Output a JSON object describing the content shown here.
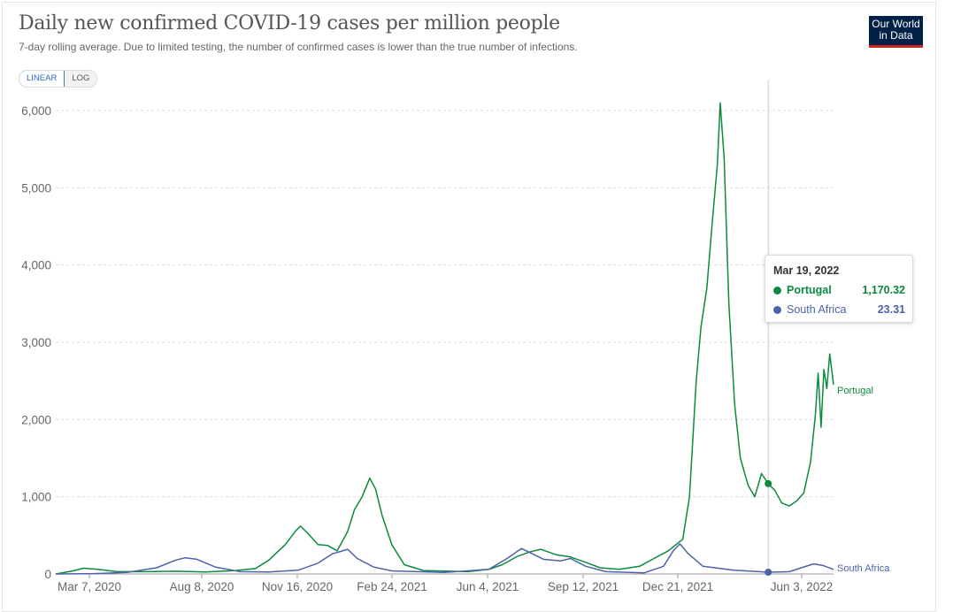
{
  "header": {
    "title": "Daily new confirmed COVID-19 cases per million people",
    "subtitle": "7-day rolling average. Due to limited testing, the number of confirmed cases is lower than the true number of infections.",
    "logo_line1": "Our World",
    "logo_line2": "in Data"
  },
  "scale_toggle": {
    "linear": "LINEAR",
    "log": "LOG",
    "selected": "LINEAR"
  },
  "tooltip": {
    "date": "Mar 19, 2022",
    "rows": [
      {
        "name": "Portugal",
        "value": "1,170.32",
        "color": "#0b8a3e"
      },
      {
        "name": "South Africa",
        "value": "23.31",
        "color": "#4c63a8"
      }
    ]
  },
  "chart_data": {
    "type": "line",
    "title": "Daily new confirmed COVID-19 cases per million people",
    "xlabel": "",
    "ylabel": "",
    "x_ticks": [
      "Mar 7, 2020",
      "Aug 8, 2020",
      "Nov 16, 2020",
      "Feb 24, 2021",
      "Jun 4, 2021",
      "Sep 12, 2021",
      "Dec 21, 2021",
      "Jun 3, 2022"
    ],
    "y_ticks": [
      "0",
      "1,000",
      "2,000",
      "3,000",
      "4,000",
      "5,000",
      "6,000"
    ],
    "ylim": [
      0,
      6200
    ],
    "grid": "horizontal dashed",
    "legend": "labels at line ends (right)",
    "hover_date": "2022-03-19",
    "series": [
      {
        "name": "Portugal",
        "color": "#0b8a3e",
        "points": [
          [
            "2020-03-07",
            0
          ],
          [
            "2020-03-25",
            40
          ],
          [
            "2020-04-05",
            75
          ],
          [
            "2020-04-20",
            60
          ],
          [
            "2020-05-10",
            30
          ],
          [
            "2020-06-10",
            30
          ],
          [
            "2020-07-10",
            35
          ],
          [
            "2020-08-10",
            25
          ],
          [
            "2020-09-10",
            45
          ],
          [
            "2020-10-01",
            70
          ],
          [
            "2020-10-15",
            180
          ],
          [
            "2020-11-01",
            380
          ],
          [
            "2020-11-12",
            560
          ],
          [
            "2020-11-17",
            620
          ],
          [
            "2020-11-25",
            520
          ],
          [
            "2020-12-05",
            380
          ],
          [
            "2020-12-15",
            370
          ],
          [
            "2020-12-25",
            300
          ],
          [
            "2021-01-05",
            550
          ],
          [
            "2021-01-12",
            830
          ],
          [
            "2021-01-20",
            1000
          ],
          [
            "2021-01-28",
            1240
          ],
          [
            "2021-02-03",
            1100
          ],
          [
            "2021-02-10",
            750
          ],
          [
            "2021-02-20",
            380
          ],
          [
            "2021-03-05",
            120
          ],
          [
            "2021-03-25",
            45
          ],
          [
            "2021-05-10",
            30
          ],
          [
            "2021-06-01",
            60
          ],
          [
            "2021-06-15",
            120
          ],
          [
            "2021-07-01",
            230
          ],
          [
            "2021-07-15",
            290
          ],
          [
            "2021-07-25",
            320
          ],
          [
            "2021-08-10",
            250
          ],
          [
            "2021-08-25",
            220
          ],
          [
            "2021-09-10",
            150
          ],
          [
            "2021-09-25",
            80
          ],
          [
            "2021-10-15",
            60
          ],
          [
            "2021-11-05",
            100
          ],
          [
            "2021-11-20",
            200
          ],
          [
            "2021-12-05",
            300
          ],
          [
            "2021-12-20",
            450
          ],
          [
            "2021-12-27",
            1000
          ],
          [
            "2022-01-03",
            2500
          ],
          [
            "2022-01-08",
            3200
          ],
          [
            "2022-01-14",
            3700
          ],
          [
            "2022-01-20",
            4600
          ],
          [
            "2022-01-25",
            5300
          ],
          [
            "2022-01-28",
            6100
          ],
          [
            "2022-02-01",
            5400
          ],
          [
            "2022-02-06",
            3500
          ],
          [
            "2022-02-12",
            2200
          ],
          [
            "2022-02-18",
            1500
          ],
          [
            "2022-02-26",
            1150
          ],
          [
            "2022-03-05",
            1000
          ],
          [
            "2022-03-12",
            1300
          ],
          [
            "2022-03-19",
            1170
          ],
          [
            "2022-03-26",
            1080
          ],
          [
            "2022-04-02",
            920
          ],
          [
            "2022-04-10",
            880
          ],
          [
            "2022-04-18",
            950
          ],
          [
            "2022-04-25",
            1050
          ],
          [
            "2022-05-02",
            1450
          ],
          [
            "2022-05-07",
            2050
          ],
          [
            "2022-05-10",
            2600
          ],
          [
            "2022-05-13",
            1900
          ],
          [
            "2022-05-16",
            2650
          ],
          [
            "2022-05-19",
            2400
          ],
          [
            "2022-05-22",
            2850
          ],
          [
            "2022-05-26",
            2450
          ]
        ]
      },
      {
        "name": "South Africa",
        "color": "#4c63a8",
        "points": [
          [
            "2020-03-07",
            0
          ],
          [
            "2020-04-15",
            5
          ],
          [
            "2020-05-20",
            20
          ],
          [
            "2020-06-20",
            80
          ],
          [
            "2020-07-10",
            180
          ],
          [
            "2020-07-20",
            210
          ],
          [
            "2020-08-01",
            190
          ],
          [
            "2020-08-20",
            90
          ],
          [
            "2020-09-15",
            30
          ],
          [
            "2020-10-15",
            25
          ],
          [
            "2020-11-15",
            50
          ],
          [
            "2020-12-05",
            140
          ],
          [
            "2020-12-20",
            260
          ],
          [
            "2021-01-05",
            320
          ],
          [
            "2021-01-15",
            200
          ],
          [
            "2021-02-01",
            90
          ],
          [
            "2021-02-20",
            40
          ],
          [
            "2021-04-15",
            20
          ],
          [
            "2021-06-01",
            60
          ],
          [
            "2021-06-20",
            200
          ],
          [
            "2021-07-05",
            330
          ],
          [
            "2021-07-15",
            270
          ],
          [
            "2021-07-28",
            190
          ],
          [
            "2021-08-15",
            170
          ],
          [
            "2021-08-25",
            200
          ],
          [
            "2021-09-10",
            100
          ],
          [
            "2021-10-01",
            30
          ],
          [
            "2021-11-10",
            15
          ],
          [
            "2021-11-30",
            100
          ],
          [
            "2021-12-10",
            300
          ],
          [
            "2021-12-17",
            390
          ],
          [
            "2021-12-25",
            270
          ],
          [
            "2022-01-10",
            100
          ],
          [
            "2022-02-10",
            50
          ],
          [
            "2022-03-19",
            23
          ],
          [
            "2022-04-10",
            30
          ],
          [
            "2022-04-25",
            90
          ],
          [
            "2022-05-05",
            130
          ],
          [
            "2022-05-15",
            110
          ],
          [
            "2022-05-26",
            60
          ]
        ]
      }
    ]
  }
}
